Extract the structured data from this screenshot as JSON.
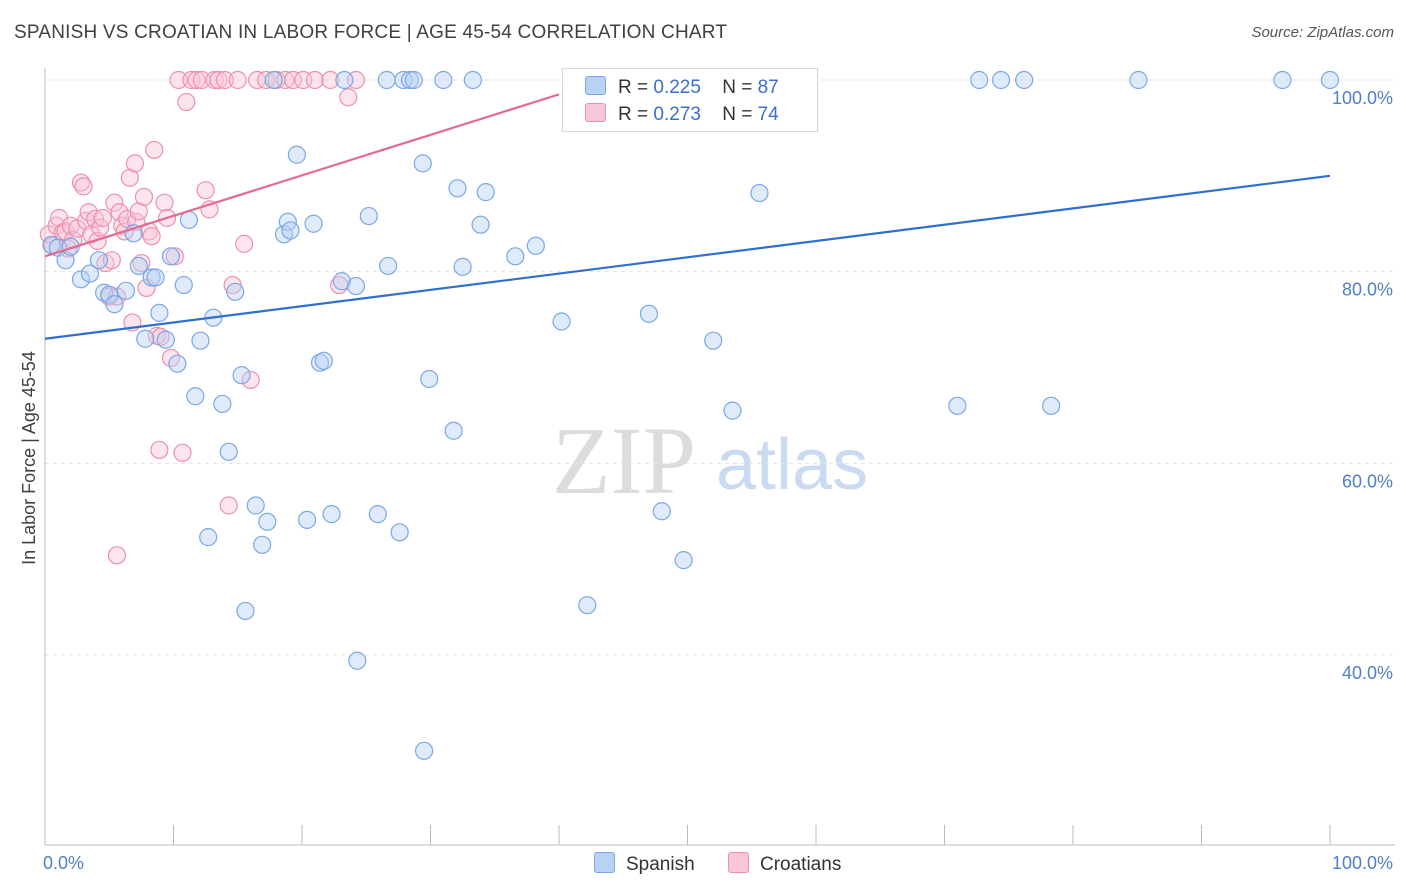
{
  "title": "SPANISH VS CROATIAN IN LABOR FORCE | AGE 45-54 CORRELATION CHART",
  "source": "Source: ZipAtlas.com",
  "watermark": {
    "zip": "ZIP",
    "atlas": "atlas"
  },
  "legend": {
    "r_label": "R =",
    "n_label": "N =",
    "items": [
      {
        "name": "Spanish",
        "r": "0.225",
        "n": "87",
        "color": "#7aa7e6",
        "fill": "#b9d1f3"
      },
      {
        "name": "Croatians",
        "r": "0.273",
        "n": "74",
        "color": "#ee8fae",
        "fill": "#f8c6d5"
      }
    ]
  },
  "chart_data": {
    "type": "scatter",
    "title": "SPANISH VS CROATIAN IN LABOR FORCE | AGE 45-54 CORRELATION CHART",
    "xlabel": "",
    "ylabel": "In Labor Force | Age 45-54",
    "xlim": [
      0,
      100
    ],
    "ylim": [
      22,
      103
    ],
    "x_tick_labels": [
      "0.0%",
      "100.0%"
    ],
    "y_ticks": [
      40,
      60,
      80,
      100
    ],
    "y_tick_labels": [
      "40.0%",
      "60.0%",
      "80.0%",
      "100.0%"
    ],
    "grid": true,
    "series": [
      {
        "name": "Spanish",
        "color": "#7aa7e6",
        "trend": {
          "x": [
            0,
            100
          ],
          "y": [
            73.0,
            90.0
          ],
          "color": "#2f6fd0"
        },
        "points": [
          [
            0.5,
            82.8
          ],
          [
            1.0,
            82.5
          ],
          [
            1.6,
            81.2
          ],
          [
            2.0,
            82.6
          ],
          [
            2.8,
            79.2
          ],
          [
            3.5,
            79.8
          ],
          [
            4.2,
            81.2
          ],
          [
            4.6,
            77.8
          ],
          [
            5.0,
            77.6
          ],
          [
            5.4,
            76.6
          ],
          [
            6.3,
            78.0
          ],
          [
            6.9,
            84.0
          ],
          [
            7.3,
            80.6
          ],
          [
            7.8,
            73.0
          ],
          [
            8.3,
            79.4
          ],
          [
            8.6,
            79.4
          ],
          [
            8.9,
            75.7
          ],
          [
            9.4,
            72.9
          ],
          [
            9.8,
            81.6
          ],
          [
            10.3,
            70.4
          ],
          [
            10.8,
            78.6
          ],
          [
            11.2,
            85.4
          ],
          [
            11.7,
            67.0
          ],
          [
            12.1,
            72.8
          ],
          [
            12.7,
            52.3
          ],
          [
            13.1,
            75.2
          ],
          [
            13.8,
            66.2
          ],
          [
            14.3,
            61.2
          ],
          [
            14.8,
            77.9
          ],
          [
            15.3,
            69.2
          ],
          [
            15.6,
            44.6
          ],
          [
            16.4,
            55.6
          ],
          [
            16.9,
            51.5
          ],
          [
            17.3,
            53.9
          ],
          [
            17.8,
            100.0
          ],
          [
            18.6,
            83.9
          ],
          [
            18.9,
            85.2
          ],
          [
            19.1,
            84.3
          ],
          [
            19.6,
            92.2
          ],
          [
            20.4,
            54.1
          ],
          [
            20.9,
            85.0
          ],
          [
            21.4,
            70.5
          ],
          [
            21.7,
            70.7
          ],
          [
            22.3,
            54.7
          ],
          [
            23.1,
            79.0
          ],
          [
            23.3,
            100.0
          ],
          [
            24.2,
            78.5
          ],
          [
            24.3,
            39.4
          ],
          [
            25.2,
            85.8
          ],
          [
            25.9,
            54.7
          ],
          [
            26.6,
            100.0
          ],
          [
            26.7,
            80.6
          ],
          [
            27.6,
            52.8
          ],
          [
            27.9,
            100.0
          ],
          [
            28.4,
            100.0
          ],
          [
            28.7,
            100.0
          ],
          [
            29.4,
            91.3
          ],
          [
            29.5,
            30.0
          ],
          [
            29.9,
            68.8
          ],
          [
            31.0,
            100.0
          ],
          [
            31.8,
            63.4
          ],
          [
            32.1,
            88.7
          ],
          [
            32.5,
            80.5
          ],
          [
            33.3,
            100.0
          ],
          [
            33.9,
            84.9
          ],
          [
            34.3,
            88.3
          ],
          [
            36.6,
            81.6
          ],
          [
            38.2,
            82.7
          ],
          [
            40.2,
            74.8
          ],
          [
            42.2,
            45.2
          ],
          [
            46.2,
            100.0
          ],
          [
            47.0,
            75.6
          ],
          [
            48.0,
            55.0
          ],
          [
            48.2,
            100.0
          ],
          [
            49.7,
            49.9
          ],
          [
            52.0,
            72.8
          ],
          [
            53.5,
            65.5
          ],
          [
            55.6,
            88.2
          ],
          [
            56.0,
            100.0
          ],
          [
            71.0,
            66.0
          ],
          [
            72.7,
            100.0
          ],
          [
            74.4,
            100.0
          ],
          [
            76.2,
            100.0
          ],
          [
            78.3,
            66.0
          ],
          [
            85.1,
            100.0
          ],
          [
            96.3,
            100.0
          ],
          [
            100.0,
            100.0
          ]
        ]
      },
      {
        "name": "Croatians",
        "color": "#ee8fae",
        "trend": {
          "x": [
            0,
            40
          ],
          "y": [
            81.6,
            98.5
          ],
          "color": "#e56990"
        },
        "points": [
          [
            0.3,
            83.9
          ],
          [
            0.6,
            82.7
          ],
          [
            0.9,
            84.8
          ],
          [
            1.1,
            85.6
          ],
          [
            1.4,
            84.1
          ],
          [
            1.6,
            84.2
          ],
          [
            1.8,
            82.4
          ],
          [
            2.0,
            84.8
          ],
          [
            2.2,
            83.3
          ],
          [
            2.5,
            84.5
          ],
          [
            2.8,
            89.3
          ],
          [
            3.0,
            88.9
          ],
          [
            3.2,
            85.3
          ],
          [
            3.4,
            86.2
          ],
          [
            3.6,
            83.9
          ],
          [
            3.9,
            85.5
          ],
          [
            4.1,
            83.2
          ],
          [
            4.3,
            84.6
          ],
          [
            4.5,
            85.6
          ],
          [
            4.7,
            80.9
          ],
          [
            5.0,
            77.4
          ],
          [
            5.2,
            81.2
          ],
          [
            5.4,
            87.2
          ],
          [
            5.6,
            77.4
          ],
          [
            5.8,
            86.2
          ],
          [
            6.0,
            84.8
          ],
          [
            6.2,
            84.2
          ],
          [
            6.4,
            85.5
          ],
          [
            6.6,
            89.8
          ],
          [
            6.8,
            74.7
          ],
          [
            7.0,
            91.3
          ],
          [
            7.1,
            85.2
          ],
          [
            7.3,
            86.3
          ],
          [
            7.5,
            80.9
          ],
          [
            7.7,
            87.8
          ],
          [
            7.9,
            78.3
          ],
          [
            8.1,
            84.2
          ],
          [
            8.3,
            83.7
          ],
          [
            8.5,
            92.7
          ],
          [
            8.7,
            73.3
          ],
          [
            8.9,
            61.4
          ],
          [
            9.0,
            73.2
          ],
          [
            9.3,
            87.2
          ],
          [
            9.5,
            85.6
          ],
          [
            9.8,
            71.0
          ],
          [
            10.1,
            81.6
          ],
          [
            10.4,
            100.0
          ],
          [
            10.7,
            61.1
          ],
          [
            11.0,
            97.7
          ],
          [
            11.4,
            100.0
          ],
          [
            11.8,
            100.0
          ],
          [
            12.2,
            100.0
          ],
          [
            12.5,
            88.5
          ],
          [
            12.8,
            86.5
          ],
          [
            13.2,
            100.0
          ],
          [
            13.5,
            100.0
          ],
          [
            14.0,
            100.0
          ],
          [
            14.3,
            55.6
          ],
          [
            14.6,
            78.6
          ],
          [
            15.0,
            100.0
          ],
          [
            15.5,
            82.9
          ],
          [
            16.0,
            68.7
          ],
          [
            16.5,
            100.0
          ],
          [
            17.2,
            100.0
          ],
          [
            18.0,
            100.0
          ],
          [
            18.7,
            100.0
          ],
          [
            19.3,
            100.0
          ],
          [
            20.1,
            100.0
          ],
          [
            21.0,
            100.0
          ],
          [
            22.2,
            100.0
          ],
          [
            22.9,
            78.6
          ],
          [
            23.6,
            98.2
          ],
          [
            24.2,
            100.0
          ],
          [
            5.6,
            50.4
          ]
        ]
      }
    ]
  }
}
